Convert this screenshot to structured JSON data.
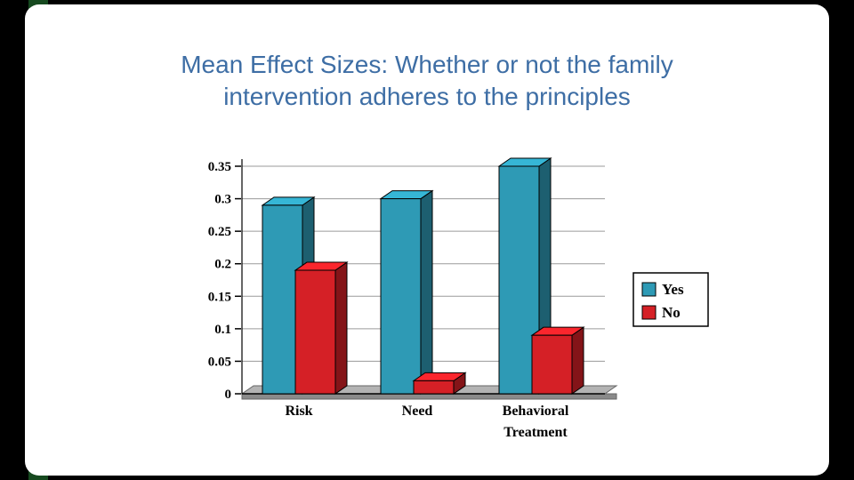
{
  "slide": {
    "title_lines": [
      "Mean Effect Sizes:  Whether or not the family",
      "intervention adheres to the principles"
    ],
    "title_color": "#3E6EA5"
  },
  "chart_data": {
    "type": "bar",
    "style": "3d-column",
    "title": "",
    "xlabel": "",
    "ylabel": "",
    "categories": [
      "Risk",
      "Need",
      "Behavioral Treatment"
    ],
    "series": [
      {
        "name": "Yes",
        "color": "#2E9AB5",
        "values": [
          0.29,
          0.3,
          0.35
        ]
      },
      {
        "name": "No",
        "color": "#D52026",
        "values": [
          0.19,
          0.02,
          0.09
        ]
      }
    ],
    "ylim": [
      0,
      0.35
    ],
    "ytick_step": 0.05,
    "ytick_labels": [
      "0",
      "0.05",
      "0.1",
      "0.15",
      "0.2",
      "0.25",
      "0.3",
      "0.35"
    ],
    "grid": true,
    "legend": {
      "position": "right",
      "entries": [
        "Yes",
        "No"
      ]
    },
    "floor_color": "#b3b3b3",
    "floor_front_color": "#8a8a8a"
  }
}
